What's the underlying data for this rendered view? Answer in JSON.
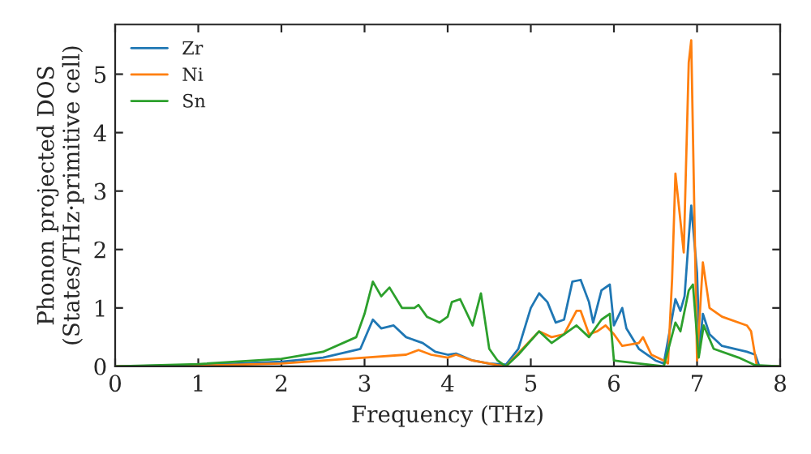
{
  "chart_data": {
    "type": "line",
    "xlabel": "Frequency (THz)",
    "ylabel": "Phonon projected DOS\n(States/THz·primitive cell)",
    "xlim": [
      0,
      8
    ],
    "ylim": [
      0,
      5.85
    ],
    "xticks": [
      0,
      1,
      2,
      3,
      4,
      5,
      6,
      7,
      8
    ],
    "yticks": [
      0,
      1,
      2,
      3,
      4,
      5
    ],
    "grid": false,
    "legend": "top left",
    "series": [
      {
        "name": "Zr",
        "color": "#1f77b4",
        "x": [
          0,
          1,
          2,
          2.5,
          2.95,
          3.1,
          3.2,
          3.35,
          3.5,
          3.7,
          3.85,
          4.0,
          4.1,
          4.3,
          4.5,
          4.7,
          4.85,
          5.0,
          5.1,
          5.2,
          5.3,
          5.4,
          5.5,
          5.6,
          5.7,
          5.75,
          5.85,
          5.95,
          6.0,
          6.1,
          6.15,
          6.3,
          6.5,
          6.6,
          6.74,
          6.8,
          6.85,
          6.9,
          6.93,
          7.0,
          7.03,
          7.07,
          7.15,
          7.3,
          7.6,
          7.7,
          7.75,
          8
        ],
        "values": [
          0,
          0.02,
          0.08,
          0.15,
          0.3,
          0.8,
          0.65,
          0.7,
          0.5,
          0.4,
          0.25,
          0.2,
          0.22,
          0.1,
          0.05,
          0.03,
          0.3,
          1.0,
          1.25,
          1.1,
          0.75,
          0.8,
          1.45,
          1.48,
          1.1,
          0.75,
          1.3,
          1.4,
          0.7,
          1.0,
          0.65,
          0.3,
          0.1,
          0.05,
          1.15,
          0.95,
          1.2,
          2.2,
          2.75,
          1.6,
          0.3,
          0.9,
          0.55,
          0.35,
          0.25,
          0.2,
          0,
          0
        ]
      },
      {
        "name": "Ni",
        "color": "#ff7f0e",
        "x": [
          0,
          1,
          2,
          3,
          3.5,
          3.65,
          3.8,
          4.0,
          4.1,
          4.3,
          4.6,
          4.7,
          4.9,
          5.1,
          5.25,
          5.4,
          5.55,
          5.6,
          5.7,
          5.8,
          5.9,
          6.0,
          6.1,
          6.3,
          6.35,
          6.45,
          6.6,
          6.65,
          6.7,
          6.74,
          6.84,
          6.9,
          6.93,
          7.0,
          7.07,
          7.15,
          7.3,
          7.6,
          7.65,
          7.72,
          8
        ],
        "values": [
          0,
          0.01,
          0.05,
          0.15,
          0.2,
          0.28,
          0.2,
          0.15,
          0.2,
          0.1,
          0.02,
          0,
          0.3,
          0.6,
          0.5,
          0.55,
          0.95,
          0.95,
          0.55,
          0.6,
          0.7,
          0.55,
          0.35,
          0.4,
          0.5,
          0.2,
          0.1,
          0.05,
          1.5,
          3.3,
          1.95,
          5.2,
          5.58,
          0.1,
          1.78,
          1.0,
          0.85,
          0.7,
          0.6,
          0,
          0
        ]
      },
      {
        "name": "Sn",
        "color": "#2ca02c",
        "x": [
          0,
          1,
          2,
          2.5,
          2.9,
          3.0,
          3.1,
          3.2,
          3.3,
          3.45,
          3.6,
          3.65,
          3.75,
          3.9,
          4.0,
          4.05,
          4.15,
          4.3,
          4.4,
          4.5,
          4.6,
          4.7,
          4.85,
          5.1,
          5.25,
          5.4,
          5.55,
          5.7,
          5.85,
          5.95,
          6.0,
          6.3,
          6.6,
          6.74,
          6.8,
          6.9,
          6.95,
          7.02,
          7.08,
          7.2,
          7.5,
          7.7,
          8
        ],
        "values": [
          0,
          0.04,
          0.13,
          0.25,
          0.5,
          0.9,
          1.45,
          1.2,
          1.35,
          1.0,
          1.0,
          1.05,
          0.85,
          0.75,
          0.85,
          1.1,
          1.15,
          0.7,
          1.25,
          0.3,
          0.1,
          0,
          0.2,
          0.6,
          0.4,
          0.55,
          0.7,
          0.5,
          0.8,
          0.9,
          0.1,
          0.05,
          0,
          0.75,
          0.6,
          1.3,
          1.4,
          0.15,
          0.7,
          0.3,
          0.15,
          0.02,
          0
        ]
      }
    ]
  }
}
